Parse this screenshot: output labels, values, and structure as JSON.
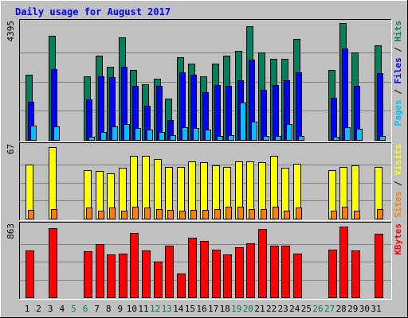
{
  "chart_data": {
    "type": "bar",
    "title": "Daily usage for August 2017",
    "colors": {
      "background": "#C0C0C0",
      "title": "#0000FF",
      "hits": "#00805C",
      "files": "#0000FF",
      "pages": "#00C0FF",
      "visits": "#FFFF00",
      "sites": "#FF8000",
      "kbytes": "#FF0000",
      "weekend_label": "#00805C"
    },
    "days": [
      "1",
      "2",
      "3",
      "4",
      "5",
      "6",
      "7",
      "8",
      "9",
      "10",
      "11",
      "12",
      "13",
      "14",
      "15",
      "16",
      "17",
      "18",
      "19",
      "20",
      "21",
      "22",
      "23",
      "24",
      "25",
      "26",
      "27",
      "28",
      "29",
      "30",
      "31"
    ],
    "weekend_days": [
      5,
      6,
      12,
      13,
      19,
      20,
      26,
      27
    ],
    "panels": [
      {
        "id": "hits",
        "max_label": "4395",
        "legend": [
          {
            "text": "Pages",
            "color": "#00C0FF"
          },
          {
            "text": " / ",
            "color": "#000000"
          },
          {
            "text": "Files",
            "color": "#0000FF"
          },
          {
            "text": " / ",
            "color": "#000000"
          },
          {
            "text": "Hits",
            "color": "#00805C"
          }
        ],
        "max": 4395,
        "series": [
          {
            "name": "Hits",
            "color": "#00805C",
            "values": [
              2460,
              0,
              3920,
              0,
              0,
              2380,
              3170,
              2740,
              3860,
              2630,
              2080,
              2290,
              1550,
              3110,
              2870,
              2380,
              2860,
              3180,
              3360,
              4270,
              3290,
              3040,
              3040,
              3790,
              0,
              0,
              2620,
              4390,
              3300,
              0,
              3550
            ]
          },
          {
            "name": "Files",
            "color": "#0000FF",
            "values": [
              1440,
              0,
              2660,
              0,
              0,
              1520,
              2390,
              2360,
              2750,
              2020,
              1300,
              2040,
              740,
              2530,
              2450,
              1790,
              2060,
              2020,
              2240,
              3030,
              1870,
              2060,
              2230,
              2540,
              0,
              0,
              1580,
              3430,
              2020,
              0,
              2500
            ]
          },
          {
            "name": "Pages",
            "color": "#00C0FF",
            "values": [
              530,
              0,
              510,
              0,
              0,
              130,
              300,
              500,
              600,
              450,
              400,
              290,
              180,
              480,
              450,
              400,
              160,
              190,
              1420,
              690,
              160,
              160,
              600,
              160,
              0,
              0,
              120,
              490,
              430,
              0,
              150
            ]
          }
        ]
      },
      {
        "id": "visits",
        "max_label": "67",
        "legend": [
          {
            "text": "Sites",
            "color": "#FF8000"
          },
          {
            "text": " / ",
            "color": "#000000"
          },
          {
            "text": "Visits",
            "color": "#FFFF00"
          }
        ],
        "max": 67,
        "series": [
          {
            "name": "Visits",
            "color": "#FFFF00",
            "values": [
              50,
              0,
              66,
              0,
              0,
              45,
              44,
              42,
              47,
              58,
              58,
              55,
              48,
              48,
              53,
              52,
              49,
              48,
              53,
              53,
              52,
              58,
              47,
              51,
              0,
              0,
              45,
              48,
              49,
              0,
              48
            ]
          },
          {
            "name": "Sites",
            "color": "#FF8000",
            "values": [
              8,
              0,
              9,
              0,
              0,
              10,
              7,
              10,
              7,
              11,
              10,
              9,
              8,
              7,
              8,
              8,
              9,
              11,
              11,
              9,
              9,
              11,
              7,
              10,
              0,
              0,
              7,
              11,
              7,
              0,
              9
            ]
          }
        ]
      },
      {
        "id": "kbytes",
        "max_label": "863",
        "legend": [
          {
            "text": "KBytes",
            "color": "#FF0000"
          }
        ],
        "max": 863,
        "series": [
          {
            "name": "KBytes",
            "color": "#FF0000",
            "values": [
              570,
              0,
              830,
              0,
              0,
              560,
              640,
              520,
              530,
              780,
              570,
              430,
              620,
              290,
              720,
              680,
              580,
              520,
              600,
              650,
              820,
              620,
              620,
              530,
              0,
              0,
              580,
              850,
              570,
              0,
              770
            ]
          }
        ]
      }
    ]
  }
}
